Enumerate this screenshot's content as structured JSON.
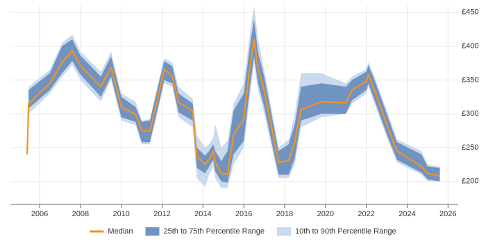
{
  "chart_data": {
    "type": "line",
    "x": [
      2005.39,
      2005.46,
      2006.5,
      2007.1,
      2007.6,
      2008.0,
      2009.0,
      2009.5,
      2010.0,
      2010.7,
      2011.0,
      2011.4,
      2011.8,
      2012.1,
      2012.5,
      2012.8,
      2013.5,
      2013.7,
      2014.1,
      2014.3,
      2014.5,
      2014.6,
      2014.9,
      2015.2,
      2015.5,
      2016.0,
      2016.3,
      2016.5,
      2016.7,
      2017.0,
      2017.7,
      2018.2,
      2018.5,
      2018.8,
      2019.8,
      2021.0,
      2021.3,
      2022.0,
      2022.1,
      2022.4,
      2022.7,
      2023.0,
      2023.5,
      2024.7,
      2025.0,
      2025.6
    ],
    "bands": [
      {
        "name": "10th to 90th Percentile Range",
        "color": "#c9d9ee",
        "lower": [
          null,
          300,
          330,
          355,
          372,
          350,
          318,
          350,
          290,
          283,
          255,
          255,
          305,
          345,
          340,
          295,
          280,
          205,
          192,
          210,
          222,
          205,
          190,
          190,
          225,
          250,
          325,
          375,
          335,
          300,
          205,
          205,
          225,
          280,
          295,
          300,
          315,
          330,
          340,
          315,
          290,
          265,
          228,
          210,
          200,
          200
        ],
        "upper": [
          null,
          340,
          365,
          405,
          417,
          392,
          362,
          392,
          330,
          318,
          290,
          292,
          345,
          382,
          376,
          340,
          322,
          268,
          250,
          255,
          265,
          285,
          250,
          260,
          315,
          345,
          420,
          460,
          410,
          365,
          250,
          262,
          300,
          360,
          360,
          345,
          355,
          366,
          376,
          355,
          330,
          305,
          262,
          245,
          225,
          222
        ]
      },
      {
        "name": "25th to 75th Percentile Range",
        "color": "#7093c1",
        "lower": [
          null,
          308,
          335,
          360,
          378,
          358,
          325,
          355,
          295,
          288,
          258,
          258,
          310,
          350,
          345,
          302,
          290,
          220,
          212,
          222,
          232,
          215,
          200,
          198,
          240,
          260,
          340,
          385,
          345,
          310,
          210,
          210,
          235,
          290,
          300,
          300,
          320,
          335,
          345,
          320,
          295,
          270,
          232,
          213,
          203,
          200
        ],
        "upper": [
          null,
          335,
          360,
          400,
          410,
          386,
          355,
          385,
          325,
          310,
          288,
          290,
          340,
          378,
          370,
          330,
          315,
          250,
          238,
          245,
          255,
          245,
          230,
          245,
          305,
          330,
          400,
          440,
          390,
          355,
          245,
          255,
          285,
          340,
          345,
          340,
          350,
          362,
          372,
          350,
          325,
          300,
          258,
          240,
          222,
          220
        ]
      }
    ],
    "series": [
      {
        "name": "Median",
        "color": "#f5931f",
        "values": [
          240,
          315,
          345,
          376,
          393,
          371,
          340,
          369,
          310,
          299,
          276,
          274,
          325,
          366,
          356,
          317,
          304,
          238,
          225,
          233,
          245,
          228,
          212,
          210,
          269,
          292,
          371,
          409,
          366,
          335,
          228,
          231,
          258,
          306,
          318,
          316,
          335,
          348,
          358,
          335,
          310,
          284,
          245,
          222,
          212,
          208
        ]
      }
    ],
    "xlim": [
      2004.57,
      2026.5
    ],
    "xticks": [
      2006,
      2008,
      2010,
      2012,
      2014,
      2016,
      2018,
      2020,
      2022,
      2024,
      2026
    ],
    "ylim": [
      166,
      460
    ],
    "yticks": [
      {
        "value": 200,
        "label": "£200"
      },
      {
        "value": 250,
        "label": "£250"
      },
      {
        "value": 300,
        "label": "£300"
      },
      {
        "value": 350,
        "label": "£350"
      },
      {
        "value": 400,
        "label": "£400"
      },
      {
        "value": 450,
        "label": "£450"
      }
    ],
    "grid": true
  }
}
